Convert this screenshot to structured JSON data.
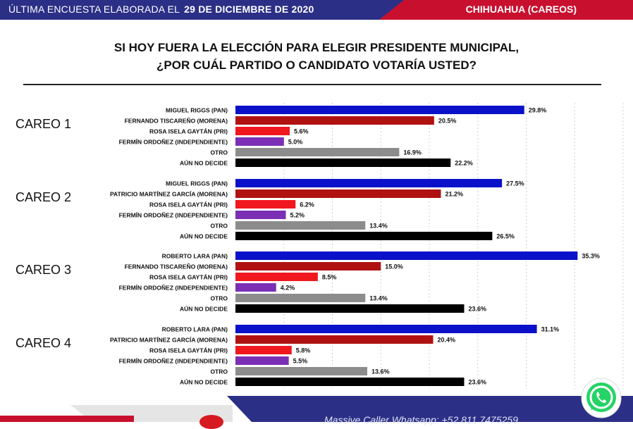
{
  "header": {
    "survey_label": "ÚLTIMA ENCUESTA ELABORADA EL",
    "survey_date": "29 DE DICIEMBRE DE 2020",
    "region": "CHIHUAHUA (CAREOS)"
  },
  "question": {
    "line1": "SI HOY FUERA LA ELECCIÓN PARA ELEGIR PRESIDENTE MUNICIPAL,",
    "line2": "¿POR CUÁL PARTIDO O CANDIDATO VOTARÍA USTED?"
  },
  "footer": {
    "text": "Massive Caller Whatsapp: +52 811 7475259"
  },
  "colors": {
    "pan": "#0a11c9",
    "morena": "#b01212",
    "pri": "#f0171f",
    "independiente": "#7a2fb5",
    "otro": "#8c8c8c",
    "no_decide": "#000000",
    "brand_blue": "#2b2f86",
    "brand_red": "#c8102e"
  },
  "icons": [
    "whatsapp-icon"
  ],
  "chart_data": [
    {
      "type": "bar",
      "orientation": "horizontal",
      "title": "CAREO 1",
      "categories": [
        "MIGUEL RIGGS (PAN)",
        "FERNANDO TISCAREÑO (MORENA)",
        "ROSA ISELA GAYTÁN (PRI)",
        "FERMÍN ORDOÑEZ (INDEPENDIENTE)",
        "OTRO",
        "AÚN NO DECIDE"
      ],
      "values": [
        29.8,
        20.5,
        5.6,
        5.0,
        16.9,
        22.2
      ],
      "value_labels": [
        "29.8%",
        "20.5%",
        "5.6%",
        "5.0%",
        "16.9%",
        "22.2%"
      ],
      "color_keys": [
        "pan",
        "morena",
        "pri",
        "independiente",
        "otro",
        "no_decide"
      ]
    },
    {
      "type": "bar",
      "orientation": "horizontal",
      "title": "CAREO 2",
      "categories": [
        "MIGUEL RIGGS (PAN)",
        "PATRICIO MARTÍNEZ GARCÍA (MORENA)",
        "ROSA ISELA GAYTÁN (PRI)",
        "FERMÍN ORDOÑEZ (INDEPENDIENTE)",
        "OTRO",
        "AÚN NO DECIDE"
      ],
      "values": [
        27.5,
        21.2,
        6.2,
        5.2,
        13.4,
        26.5
      ],
      "value_labels": [
        "27.5%",
        "21.2%",
        "6.2%",
        "5.2%",
        "13.4%",
        "26.5%"
      ],
      "color_keys": [
        "pan",
        "morena",
        "pri",
        "independiente",
        "otro",
        "no_decide"
      ]
    },
    {
      "type": "bar",
      "orientation": "horizontal",
      "title": "CAREO 3",
      "categories": [
        "ROBERTO LARA (PAN)",
        "FERNANDO TISCAREÑO (MORENA)",
        "ROSA ISELA GAYTÁN (PRI)",
        "FERMÍN ORDOÑEZ (INDEPENDIENTE)",
        "OTRO",
        "AÚN NO DECIDE"
      ],
      "values": [
        35.3,
        15.0,
        8.5,
        4.2,
        13.4,
        23.6
      ],
      "value_labels": [
        "35.3%",
        "15.0%",
        "8.5%",
        "4.2%",
        "13.4%",
        "23.6%"
      ],
      "color_keys": [
        "pan",
        "morena",
        "pri",
        "independiente",
        "otro",
        "no_decide"
      ]
    },
    {
      "type": "bar",
      "orientation": "horizontal",
      "title": "CAREO 4",
      "categories": [
        "ROBERTO LARA (PAN)",
        "PATRICIO MARTÍNEZ GARCÍA (MORENA)",
        "ROSA ISELA GAYTÁN (PRI)",
        "FERMÍN ORDOÑEZ (INDEPENDIENTE)",
        "OTRO",
        "AÚN NO DECIDE"
      ],
      "values": [
        31.1,
        20.4,
        5.8,
        5.5,
        13.6,
        23.6
      ],
      "value_labels": [
        "31.1%",
        "20.4%",
        "5.8%",
        "5.5%",
        "13.6%",
        "23.6%"
      ],
      "color_keys": [
        "pan",
        "morena",
        "pri",
        "independiente",
        "otro",
        "no_decide"
      ]
    }
  ]
}
